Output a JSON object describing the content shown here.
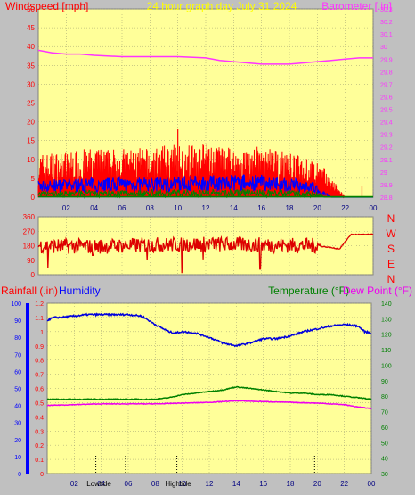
{
  "header": {
    "title": "24 hour graph day   July 31 2024",
    "left_label": "Windspeed [mph]",
    "right_label": "Barometer [.in]"
  },
  "bottom_header": {
    "rainfall_label": "Rainfall (.in)",
    "humidity_label": "Humidity",
    "temperature_label": "Temperature (°F)",
    "dewpoint_label": "Dew Point (°F)"
  },
  "x_ticks": [
    "02",
    "04",
    "06",
    "08",
    "10",
    "12",
    "14",
    "16",
    "18",
    "20",
    "22",
    "00"
  ],
  "markers": {
    "low_tide": "Lowtide",
    "high_tide": "Hightide"
  },
  "colors": {
    "panel_bg": "#ffff99",
    "wind": "#ff0000",
    "wind_avg": "#0000ff",
    "wind_low": "#008000",
    "barometer": "#ff33ff",
    "wind_dir": "#dd0000",
    "humidity": "#0000dd",
    "temperature": "#008000",
    "dewpoint": "#ee00ee",
    "rain_axis": "#0000ff"
  },
  "chart_data": [
    {
      "type": "bar",
      "name": "wind",
      "ylabel": "Windspeed [mph]",
      "ylim": [
        0,
        50
      ],
      "y_ticks": [
        "0",
        "5",
        "10",
        "15",
        "20",
        "25",
        "30",
        "35",
        "40",
        "45",
        "50"
      ],
      "series": [
        {
          "name": "Windspeed",
          "profile_x": [
            0,
            2,
            4,
            6,
            8,
            10,
            12,
            14,
            16,
            18,
            19.5,
            20.5,
            21.5,
            22,
            23,
            24
          ],
          "profile_y": [
            9,
            9.5,
            10,
            10,
            10,
            11,
            11,
            10,
            10.5,
            9,
            8,
            6,
            2,
            0,
            0,
            0
          ],
          "peak": 18
        },
        {
          "name": "Average",
          "profile_x": [
            0,
            4,
            8,
            12,
            16,
            19.5,
            20.5,
            21,
            24
          ],
          "profile_y": [
            3,
            3.5,
            3.5,
            4,
            4,
            3,
            1,
            0,
            0
          ]
        },
        {
          "name": "Low",
          "profile_x": [
            0,
            8,
            16,
            20,
            20.5,
            24
          ],
          "profile_y": [
            1,
            1.3,
            1.3,
            1,
            0,
            0
          ]
        }
      ]
    },
    {
      "type": "line",
      "name": "barometer",
      "ylabel": "Barometer [.in]",
      "ylim": [
        28.8,
        30.3
      ],
      "y_ticks": [
        "28.8",
        "28.9",
        "29",
        "29.1",
        "29.2",
        "29.3",
        "29.4",
        "29.5",
        "29.6",
        "29.7",
        "29.8",
        "29.9",
        "30",
        "30.1",
        "30.2",
        "30.3"
      ],
      "x": [
        0,
        1,
        2,
        3,
        4,
        6,
        8,
        10,
        12,
        13,
        14,
        15,
        16,
        17,
        18,
        19,
        20,
        21,
        22,
        23,
        24
      ],
      "values": [
        29.97,
        29.95,
        29.94,
        29.94,
        29.93,
        29.92,
        29.92,
        29.92,
        29.91,
        29.89,
        29.88,
        29.87,
        29.86,
        29.86,
        29.86,
        29.87,
        29.88,
        29.89,
        29.9,
        29.91,
        29.91
      ]
    },
    {
      "type": "scatter",
      "name": "wind_direction",
      "ylim": [
        0,
        360
      ],
      "y_ticks": [
        "0",
        "90",
        "180",
        "270",
        "360"
      ],
      "right_labels": [
        "N",
        "W",
        "S",
        "E",
        "N"
      ],
      "profile_x": [
        0,
        4,
        8,
        12,
        16,
        20,
        21.6,
        22.4,
        24
      ],
      "profile_y": [
        180,
        175,
        185,
        190,
        185,
        180,
        160,
        250,
        250
      ],
      "dips": [
        {
          "x": 0.7,
          "y": 40
        },
        {
          "x": 10.3,
          "y": 10
        },
        {
          "x": 15.9,
          "y": 35
        },
        {
          "x": 7.8,
          "y": 90
        },
        {
          "x": 11.8,
          "y": 95
        },
        {
          "x": 3.9,
          "y": 120
        }
      ]
    },
    {
      "type": "line",
      "name": "humidity_temperature",
      "left_ylabel": "Humidity",
      "ylim": [
        0,
        1.2
      ],
      "y_ticks": [
        "0",
        "0.1",
        "0.2",
        "0.3",
        "0.4",
        "0.5",
        "0.6",
        "0.7",
        "0.8",
        "0.9",
        "1",
        "1.1",
        "1.2"
      ],
      "rain_ticks": [
        "0",
        "10",
        "20",
        "30",
        "40",
        "50",
        "60",
        "70",
        "80",
        "90",
        "100"
      ],
      "right_ylim": [
        30,
        140
      ],
      "right_ticks": [
        "30",
        "40",
        "50",
        "60",
        "70",
        "80",
        "90",
        "100",
        "110",
        "120",
        "130",
        "140"
      ],
      "series": [
        {
          "name": "Humidity",
          "x": [
            0,
            0.5,
            1,
            2,
            3,
            4,
            5,
            6,
            7,
            8,
            9,
            9.5,
            10,
            11,
            12,
            13,
            14,
            15,
            16,
            17,
            18,
            19,
            20,
            21,
            22,
            23,
            23.5,
            24
          ],
          "values": [
            1.08,
            1.1,
            1.1,
            1.11,
            1.12,
            1.12,
            1.12,
            1.12,
            1.11,
            1.05,
            1.0,
            0.99,
            1.0,
            0.99,
            0.96,
            0.92,
            0.9,
            0.92,
            0.95,
            0.95,
            0.97,
            1.0,
            1.02,
            1.04,
            1.05,
            1.04,
            1.0,
            0.99
          ]
        },
        {
          "name": "Temperature",
          "x": [
            0,
            2,
            4,
            6,
            7,
            8,
            9,
            10,
            11,
            12,
            13,
            14,
            15,
            16,
            17,
            18,
            19,
            20,
            21,
            22,
            23,
            24
          ],
          "values": [
            78,
            78,
            78,
            78,
            78,
            78,
            79,
            81,
            82,
            83,
            84,
            86,
            85,
            84,
            83,
            82,
            82,
            81,
            81,
            80,
            79,
            78
          ]
        },
        {
          "name": "Dew Point",
          "x": [
            0,
            2,
            4,
            6,
            8,
            10,
            12,
            14,
            16,
            18,
            20,
            22,
            23,
            24
          ],
          "values": [
            74,
            74.5,
            75,
            75,
            75,
            75.5,
            76,
            77,
            76.5,
            76,
            75.5,
            74.5,
            73,
            72
          ]
        }
      ]
    }
  ]
}
